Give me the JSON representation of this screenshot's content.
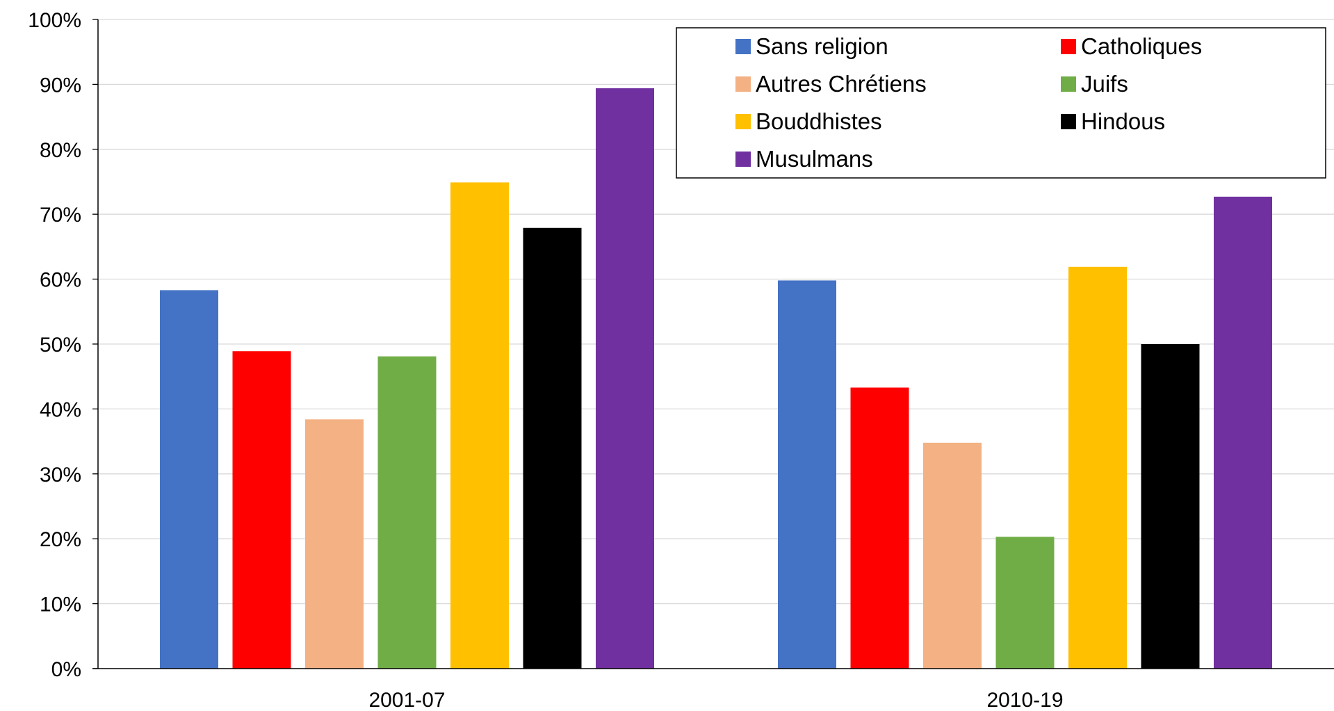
{
  "chart_data": {
    "type": "bar",
    "categories": [
      "2001-07",
      "2010-19"
    ],
    "series": [
      {
        "name": "Sans religion",
        "color": "#4472C4",
        "values": [
          58.3,
          59.8
        ]
      },
      {
        "name": "Catholiques",
        "color": "#FF0000",
        "values": [
          48.9,
          43.3
        ]
      },
      {
        "name": "Autres Chrétiens",
        "color": "#F4B183",
        "values": [
          38.4,
          34.8
        ]
      },
      {
        "name": "Juifs",
        "color": "#70AD47",
        "values": [
          48.1,
          20.3
        ]
      },
      {
        "name": "Bouddhistes",
        "color": "#FFC000",
        "values": [
          74.9,
          61.9
        ]
      },
      {
        "name": "Hindous",
        "color": "#000000",
        "values": [
          67.9,
          50.0
        ]
      },
      {
        "name": "Musulmans",
        "color": "#7030A0",
        "values": [
          89.4,
          72.7
        ]
      }
    ],
    "ylim": [
      0,
      100
    ],
    "yticks": [
      "0%",
      "10%",
      "20%",
      "30%",
      "40%",
      "50%",
      "60%",
      "70%",
      "80%",
      "90%",
      "100%"
    ],
    "grid": true,
    "legend_position": "top-right",
    "legend_columns": 2
  }
}
